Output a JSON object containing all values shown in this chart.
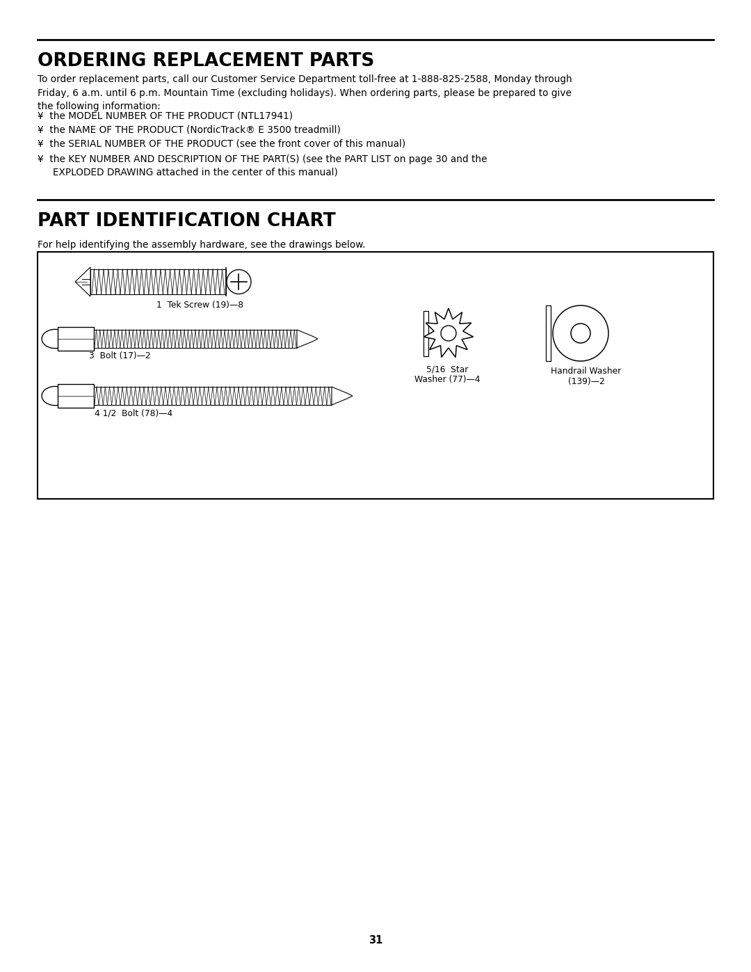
{
  "bg_color": "#ffffff",
  "text_color": "#000000",
  "page_number": "31",
  "section1_title": "ORDERING REPLACEMENT PARTS",
  "section1_body": "To order replacement parts, call our Customer Service Department toll-free at 1-888-825-2588, Monday through\nFriday, 6 a.m. until 6 p.m. Mountain Time (excluding holidays). When ordering parts, please be prepared to give\nthe following information:",
  "bullets": [
    "¥  the MODEL NUMBER OF THE PRODUCT (NTL17941)",
    "¥  the NAME OF THE PRODUCT (NordicTrack® E 3500 treadmill)",
    "¥  the SERIAL NUMBER OF THE PRODUCT (see the front cover of this manual)",
    "¥  the KEY NUMBER AND DESCRIPTION OF THE PART(S) (see the PART LIST on page 30 and the\n     EXPLODED DRAWING attached in the center of this manual)"
  ],
  "section2_title": "PART IDENTIFICATION CHART",
  "section2_intro": "For help identifying the assembly hardware, see the drawings below.",
  "labels": {
    "tek_screw": "1  Tek Screw (19)—8",
    "bolt_3": "3  Bolt (17)—2",
    "bolt_4": "4 1/2  Bolt (78)—4",
    "star_washer": "5/16  Star\nWasher (77)—4",
    "handrail_washer": "Handrail Washer\n(139)—2"
  }
}
